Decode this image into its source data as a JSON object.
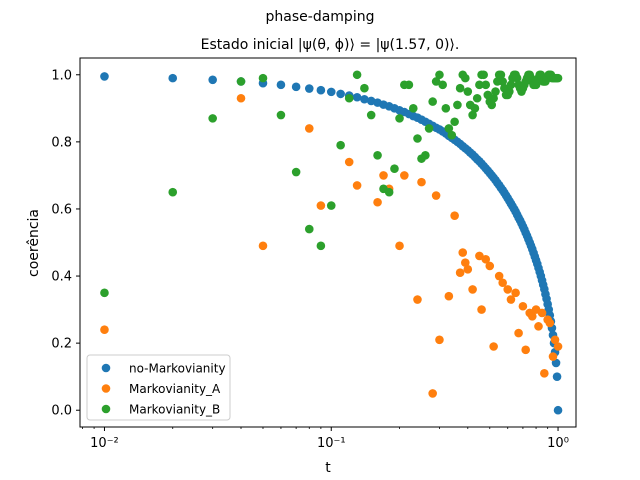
{
  "figure": {
    "suptitle": "phase-damping"
  },
  "chart_data": {
    "type": "scatter",
    "title": "Estado inicial |ψ(θ, ϕ)⟩ = |ψ(1.57, 0)⟩.",
    "xlabel": "t",
    "ylabel": "coerência",
    "xscale": "log",
    "xlim": [
      0.0078,
      1.2
    ],
    "ylim": [
      -0.05,
      1.05
    ],
    "xticks": [
      0.01,
      0.1,
      1
    ],
    "xtick_labels": [
      "10⁻²",
      "10⁻¹",
      "10⁰"
    ],
    "yticks": [
      0.0,
      0.2,
      0.4,
      0.6,
      0.8,
      1.0
    ],
    "ytick_labels": [
      "0.0",
      "0.2",
      "0.4",
      "0.6",
      "0.8",
      "1.0"
    ],
    "grid": false,
    "legend_position": "lower-left",
    "series": [
      {
        "name": "no-Markovianity",
        "color": "#1f77b4",
        "x": [
          0.01,
          0.02,
          0.03,
          0.04,
          0.05,
          0.06,
          0.07,
          0.08,
          0.09,
          0.1,
          0.11,
          0.12,
          0.13,
          0.14,
          0.15,
          0.16,
          0.17,
          0.18,
          0.19,
          0.2,
          0.21,
          0.22,
          0.23,
          0.24,
          0.25,
          0.26,
          0.27,
          0.28,
          0.29,
          0.3,
          0.31,
          0.32,
          0.33,
          0.34,
          0.35,
          0.36,
          0.37,
          0.38,
          0.39,
          0.4,
          0.41,
          0.42,
          0.43,
          0.44,
          0.45,
          0.46,
          0.47,
          0.48,
          0.49,
          0.5,
          0.51,
          0.52,
          0.53,
          0.54,
          0.55,
          0.56,
          0.57,
          0.58,
          0.59,
          0.6,
          0.61,
          0.62,
          0.63,
          0.64,
          0.65,
          0.66,
          0.67,
          0.68,
          0.69,
          0.7,
          0.71,
          0.72,
          0.73,
          0.74,
          0.75,
          0.76,
          0.77,
          0.78,
          0.79,
          0.8,
          0.81,
          0.82,
          0.83,
          0.84,
          0.85,
          0.86,
          0.87,
          0.88,
          0.89,
          0.9,
          0.91,
          0.92,
          0.93,
          0.94,
          0.95,
          0.96,
          0.97,
          0.98,
          0.99,
          1.0
        ],
        "y": [
          0.995,
          0.99,
          0.985,
          0.98,
          0.975,
          0.97,
          0.964,
          0.959,
          0.954,
          0.949,
          0.943,
          0.938,
          0.933,
          0.927,
          0.922,
          0.917,
          0.911,
          0.906,
          0.9,
          0.894,
          0.889,
          0.883,
          0.877,
          0.872,
          0.866,
          0.86,
          0.854,
          0.848,
          0.842,
          0.837,
          0.831,
          0.825,
          0.818,
          0.812,
          0.806,
          0.8,
          0.794,
          0.787,
          0.781,
          0.775,
          0.768,
          0.762,
          0.755,
          0.748,
          0.742,
          0.735,
          0.728,
          0.721,
          0.714,
          0.707,
          0.7,
          0.693,
          0.686,
          0.678,
          0.671,
          0.663,
          0.656,
          0.648,
          0.64,
          0.632,
          0.624,
          0.616,
          0.608,
          0.6,
          0.592,
          0.583,
          0.574,
          0.566,
          0.557,
          0.548,
          0.539,
          0.529,
          0.52,
          0.51,
          0.5,
          0.49,
          0.48,
          0.469,
          0.458,
          0.447,
          0.436,
          0.424,
          0.412,
          0.4,
          0.387,
          0.374,
          0.361,
          0.346,
          0.332,
          0.316,
          0.3,
          0.283,
          0.265,
          0.245,
          0.224,
          0.2,
          0.173,
          0.141,
          0.1,
          0.0
        ]
      },
      {
        "name": "Markovianity_A",
        "color": "#ff7f0e",
        "x": [
          0.01,
          0.04,
          0.05,
          0.08,
          0.09,
          0.12,
          0.13,
          0.16,
          0.17,
          0.18,
          0.2,
          0.21,
          0.24,
          0.25,
          0.28,
          0.29,
          0.3,
          0.33,
          0.35,
          0.37,
          0.38,
          0.39,
          0.4,
          0.42,
          0.45,
          0.46,
          0.48,
          0.5,
          0.52,
          0.55,
          0.57,
          0.6,
          0.62,
          0.65,
          0.67,
          0.7,
          0.72,
          0.75,
          0.77,
          0.8,
          0.82,
          0.85,
          0.87,
          0.9,
          0.92,
          0.95,
          0.97,
          1.0
        ],
        "y": [
          0.24,
          0.93,
          0.49,
          0.84,
          0.61,
          0.74,
          0.67,
          0.62,
          0.7,
          0.66,
          0.49,
          0.7,
          0.33,
          0.68,
          0.05,
          0.64,
          0.21,
          0.34,
          0.58,
          0.41,
          0.47,
          0.44,
          0.42,
          0.36,
          0.46,
          0.3,
          0.45,
          0.43,
          0.19,
          0.4,
          0.38,
          0.36,
          0.33,
          0.35,
          0.23,
          0.31,
          0.18,
          0.29,
          0.28,
          0.3,
          0.25,
          0.29,
          0.11,
          0.27,
          0.26,
          0.16,
          0.21,
          0.19
        ]
      },
      {
        "name": "Markovianity_B",
        "color": "#2ca02c",
        "x": [
          0.01,
          0.02,
          0.03,
          0.04,
          0.05,
          0.06,
          0.07,
          0.08,
          0.09,
          0.1,
          0.11,
          0.12,
          0.13,
          0.14,
          0.15,
          0.16,
          0.17,
          0.18,
          0.19,
          0.2,
          0.21,
          0.22,
          0.23,
          0.24,
          0.25,
          0.26,
          0.27,
          0.28,
          0.29,
          0.3,
          0.31,
          0.32,
          0.33,
          0.34,
          0.35,
          0.36,
          0.37,
          0.38,
          0.39,
          0.4,
          0.41,
          0.42,
          0.43,
          0.44,
          0.45,
          0.46,
          0.47,
          0.48,
          0.49,
          0.5,
          0.51,
          0.52,
          0.53,
          0.54,
          0.55,
          0.56,
          0.57,
          0.58,
          0.59,
          0.6,
          0.61,
          0.62,
          0.63,
          0.64,
          0.65,
          0.66,
          0.67,
          0.68,
          0.69,
          0.7,
          0.71,
          0.72,
          0.73,
          0.74,
          0.75,
          0.76,
          0.77,
          0.78,
          0.79,
          0.8,
          0.81,
          0.82,
          0.83,
          0.84,
          0.85,
          0.86,
          0.87,
          0.88,
          0.89,
          0.9,
          0.91,
          0.92,
          0.93,
          0.94,
          0.95,
          0.96,
          0.97,
          0.98,
          0.99,
          1.0
        ],
        "y": [
          0.35,
          0.65,
          0.87,
          0.98,
          0.99,
          0.88,
          0.71,
          0.54,
          0.49,
          0.61,
          0.79,
          0.93,
          1.0,
          0.96,
          0.88,
          0.76,
          0.66,
          0.65,
          0.72,
          0.87,
          0.97,
          0.97,
          0.9,
          0.81,
          0.75,
          0.76,
          0.84,
          0.92,
          0.98,
          1.0,
          0.97,
          0.9,
          0.84,
          0.82,
          0.86,
          0.91,
          0.96,
          1.0,
          0.99,
          0.95,
          0.91,
          0.88,
          0.9,
          0.93,
          0.97,
          1.0,
          1.0,
          0.97,
          0.94,
          0.92,
          0.91,
          0.93,
          0.95,
          0.98,
          1.0,
          1.0,
          0.98,
          0.96,
          0.94,
          0.94,
          0.95,
          0.97,
          0.99,
          1.0,
          1.0,
          0.99,
          0.97,
          0.96,
          0.95,
          0.96,
          0.97,
          0.98,
          0.99,
          1.0,
          1.0,
          0.99,
          0.98,
          0.97,
          0.97,
          0.97,
          0.98,
          0.99,
          1.0,
          1.0,
          0.99,
          0.98,
          0.98,
          0.98,
          0.99,
          0.99,
          1.0,
          1.0,
          1.0,
          0.99,
          0.99,
          0.99,
          0.99,
          0.99,
          0.99,
          0.99
        ]
      }
    ]
  }
}
